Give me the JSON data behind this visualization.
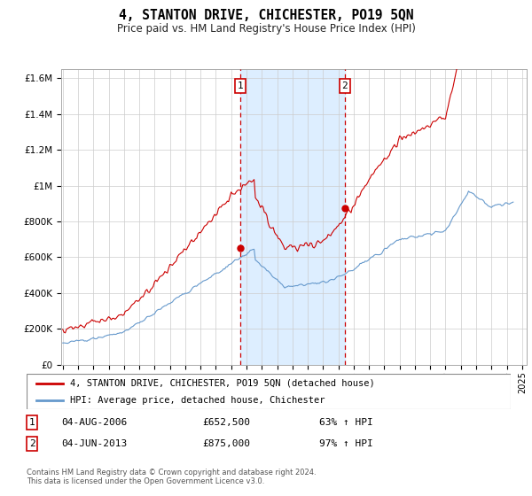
{
  "title": "4, STANTON DRIVE, CHICHESTER, PO19 5QN",
  "subtitle": "Price paid vs. HM Land Registry's House Price Index (HPI)",
  "footnote": "Contains HM Land Registry data © Crown copyright and database right 2024.\nThis data is licensed under the Open Government Licence v3.0.",
  "legend_line1": "4, STANTON DRIVE, CHICHESTER, PO19 5QN (detached house)",
  "legend_line2": "HPI: Average price, detached house, Chichester",
  "transaction1_date": "04-AUG-2006",
  "transaction1_price": "£652,500",
  "transaction1_hpi": "63% ↑ HPI",
  "transaction1_x": 2006.583,
  "transaction1_y": 652500,
  "transaction2_date": "04-JUN-2013",
  "transaction2_price": "£875,000",
  "transaction2_hpi": "97% ↑ HPI",
  "transaction2_x": 2013.417,
  "transaction2_y": 875000,
  "hpi_color": "#6699cc",
  "price_color": "#cc0000",
  "marker_box_color": "#cc0000",
  "shaded_color": "#ddeeff",
  "background_color": "#ffffff",
  "grid_color": "#cccccc",
  "ylim": [
    0,
    1650000
  ],
  "xlim_start": 1994.9,
  "xlim_end": 2025.3,
  "yticks": [
    0,
    200000,
    400000,
    600000,
    800000,
    1000000,
    1200000,
    1400000,
    1600000
  ],
  "ytick_labels": [
    "£0",
    "£200K",
    "£400K",
    "£600K",
    "£800K",
    "£1M",
    "£1.2M",
    "£1.4M",
    "£1.6M"
  ],
  "xticks": [
    1995,
    1996,
    1997,
    1998,
    1999,
    2000,
    2001,
    2002,
    2003,
    2004,
    2005,
    2006,
    2007,
    2008,
    2009,
    2010,
    2011,
    2012,
    2013,
    2014,
    2015,
    2016,
    2017,
    2018,
    2019,
    2020,
    2021,
    2022,
    2023,
    2024,
    2025
  ]
}
